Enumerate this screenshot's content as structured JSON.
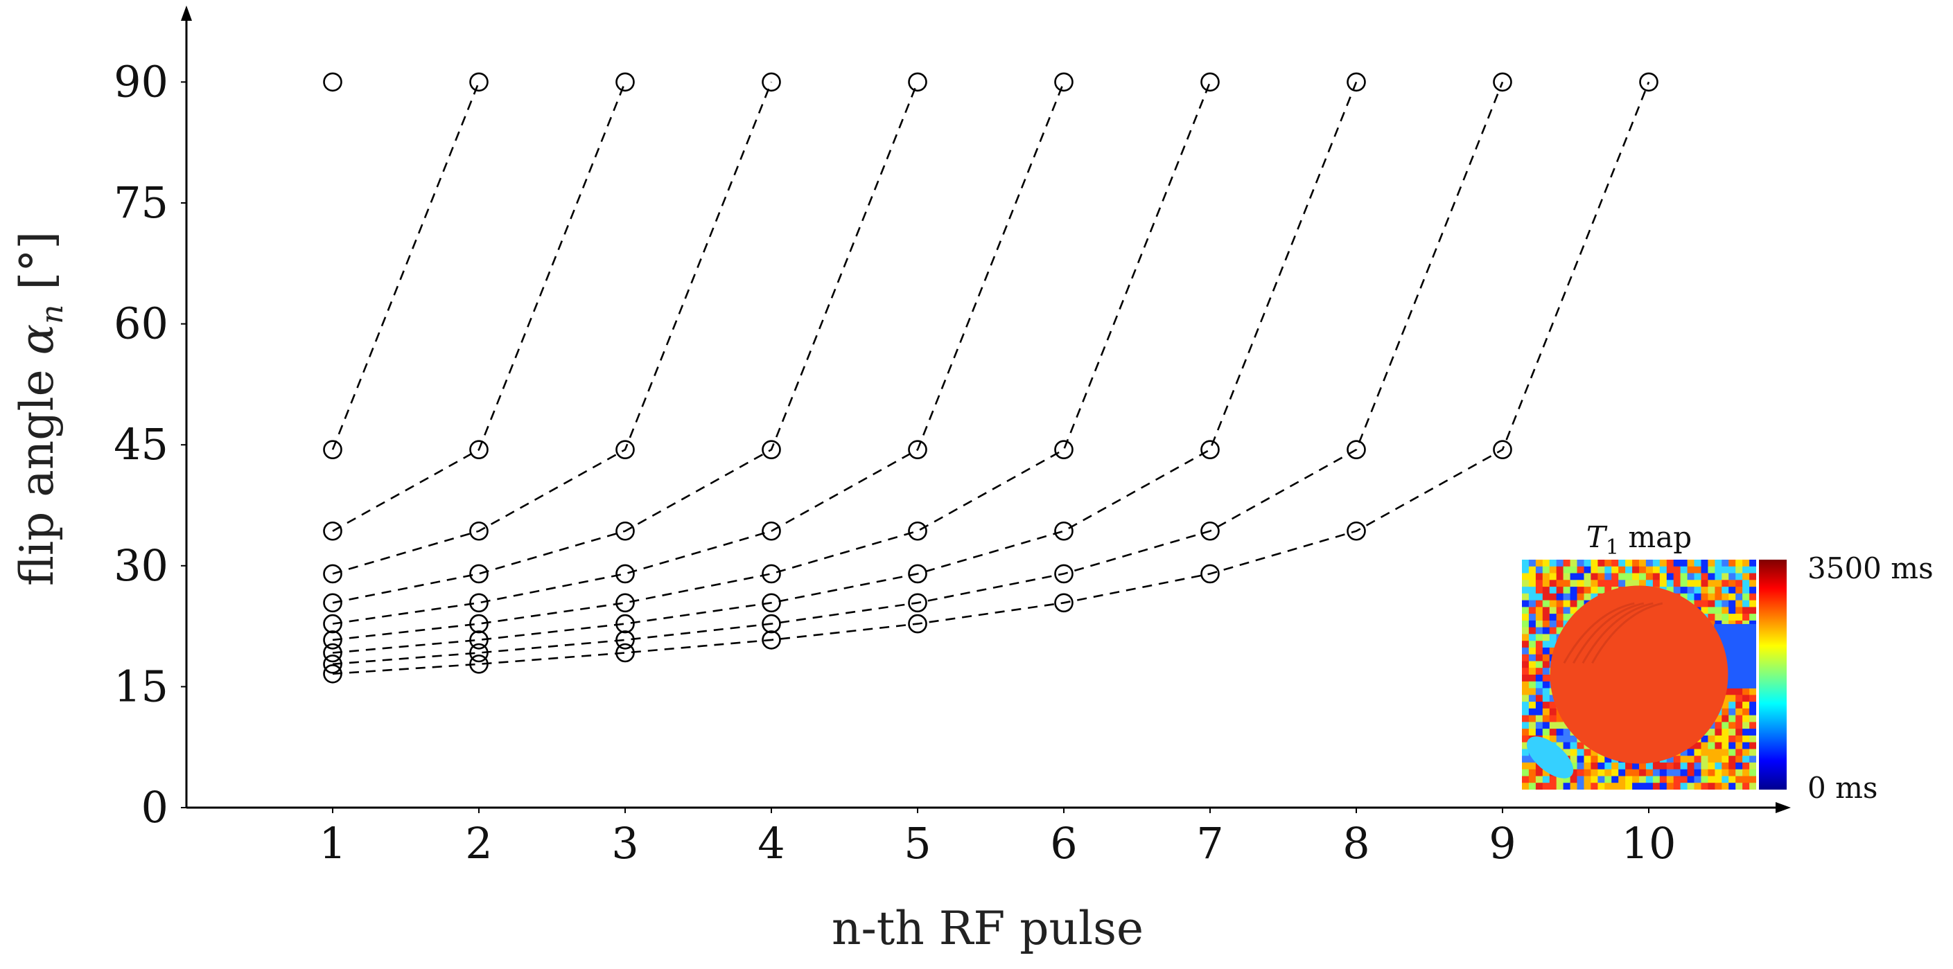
{
  "chart_data": {
    "type": "line",
    "xlabel": "n-th RF pulse",
    "ylabel_prefix": "flip angle ",
    "ylabel_symbol": "α",
    "ylabel_subscript": "n",
    "ylabel_suffix": " [°]",
    "x_ticks": [
      "1",
      "2",
      "3",
      "4",
      "5",
      "6",
      "7",
      "8",
      "9",
      "10"
    ],
    "y_ticks": [
      "0",
      "15",
      "30",
      "45",
      "60",
      "75",
      "90"
    ],
    "xlim": [
      0,
      10.8
    ],
    "ylim": [
      0,
      97
    ],
    "grid": false,
    "series": [
      {
        "x": [
          1,
          2
        ],
        "y": [
          44.4,
          90
        ]
      },
      {
        "x": [
          1,
          2,
          3
        ],
        "y": [
          34.3,
          44.4,
          90
        ]
      },
      {
        "x": [
          1,
          2,
          3,
          4
        ],
        "y": [
          29.0,
          34.3,
          44.4,
          90
        ]
      },
      {
        "x": [
          1,
          2,
          3,
          4,
          5
        ],
        "y": [
          25.4,
          29.0,
          34.3,
          44.4,
          90
        ]
      },
      {
        "x": [
          1,
          2,
          3,
          4,
          5,
          6
        ],
        "y": [
          22.8,
          25.4,
          29.0,
          34.3,
          44.4,
          90
        ]
      },
      {
        "x": [
          1,
          2,
          3,
          4,
          5,
          6,
          7
        ],
        "y": [
          20.8,
          22.8,
          25.4,
          29.0,
          34.3,
          44.4,
          90
        ]
      },
      {
        "x": [
          1,
          2,
          3,
          4,
          5,
          6,
          7,
          8
        ],
        "y": [
          19.2,
          20.8,
          22.8,
          25.4,
          29.0,
          34.3,
          44.4,
          90
        ]
      },
      {
        "x": [
          1,
          2,
          3,
          4,
          5,
          6,
          7,
          8,
          9
        ],
        "y": [
          17.8,
          19.2,
          20.8,
          22.8,
          25.4,
          29.0,
          34.3,
          44.4,
          90
        ]
      },
      {
        "x": [
          1,
          2,
          3,
          4,
          5,
          6,
          7,
          8,
          9,
          10
        ],
        "y": [
          16.6,
          17.8,
          19.2,
          20.8,
          22.8,
          25.4,
          29.0,
          34.3,
          44.4,
          90
        ]
      }
    ],
    "single_point": {
      "x": 1,
      "y": 90
    },
    "inset": {
      "title_symbol": "T",
      "title_subscript": "1",
      "title_suffix": " map",
      "colorbar_max_label": "3500 ms",
      "colorbar_min_label": "0 ms",
      "colormap": [
        "#00008f",
        "#0000ff",
        "#0080ff",
        "#00ffff",
        "#80ff80",
        "#ffff00",
        "#ff8000",
        "#ff0000",
        "#800000"
      ],
      "disk_color": "#f2481c"
    }
  }
}
